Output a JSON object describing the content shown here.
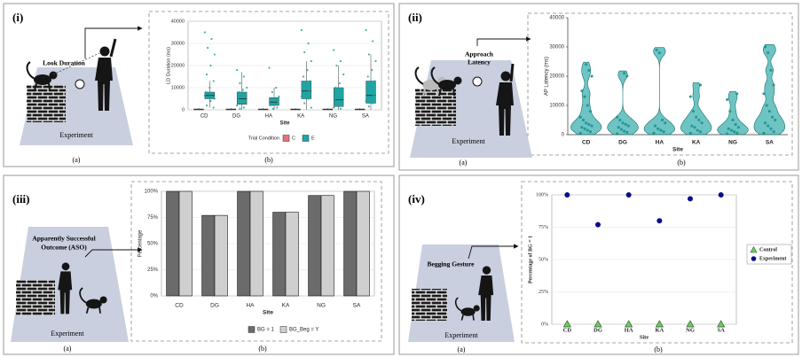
{
  "chart_data": [
    {
      "type": "box",
      "y_label": "LD Duration (ms)",
      "x_label": "Site",
      "legend_title": "Trial Condition",
      "legend_position": "bottom",
      "grid": true,
      "categories": [
        "CD",
        "DG",
        "HA",
        "KA",
        "NG",
        "SA"
      ],
      "ylim": [
        0,
        40000
      ],
      "yticks": [
        0,
        10000,
        20000,
        30000,
        40000
      ],
      "series": [
        {
          "name": "C",
          "color": "#e8707a",
          "stats": [
            {
              "min": 0,
              "q1": 0,
              "median": 200,
              "q3": 400,
              "max": 800
            },
            {
              "min": 0,
              "q1": 0,
              "median": 200,
              "q3": 400,
              "max": 800
            },
            {
              "min": 0,
              "q1": 0,
              "median": 200,
              "q3": 400,
              "max": 800
            },
            {
              "min": 0,
              "q1": 0,
              "median": 200,
              "q3": 400,
              "max": 800
            },
            {
              "min": 0,
              "q1": 0,
              "median": 200,
              "q3": 400,
              "max": 800
            },
            {
              "min": 0,
              "q1": 0,
              "median": 200,
              "q3": 400,
              "max": 800
            }
          ]
        },
        {
          "name": "E",
          "color": "#1fa5a3",
          "stats": [
            {
              "min": 1000,
              "q1": 5000,
              "median": 6500,
              "q3": 8000,
              "max": 13000
            },
            {
              "min": 0,
              "q1": 2500,
              "median": 5000,
              "q3": 8000,
              "max": 17000
            },
            {
              "min": 0,
              "q1": 2000,
              "median": 3500,
              "q3": 5500,
              "max": 10000
            },
            {
              "min": 0,
              "q1": 5000,
              "median": 8500,
              "q3": 13000,
              "max": 22000
            },
            {
              "min": 0,
              "q1": 1500,
              "median": 4500,
              "q3": 10000,
              "max": 20000
            },
            {
              "min": 0,
              "q1": 3000,
              "median": 6500,
              "q3": 13000,
              "max": 25000
            }
          ],
          "points": [
            [
              35000,
              32000,
              28000,
              25000,
              20000,
              16000,
              13000,
              10000,
              8000,
              7500,
              7000,
              6500,
              6000,
              5500,
              5000,
              4000,
              2000,
              1000
            ],
            [
              18000,
              15000,
              12000,
              10000,
              9000,
              8000,
              7000,
              6000,
              5000,
              4000,
              3000,
              2000,
              1000,
              500
            ],
            [
              19000,
              10000,
              8000,
              6000,
              5000,
              4000,
              3500,
              3000,
              2000,
              1000,
              500
            ],
            [
              36000,
              30000,
              26000,
              22000,
              18000,
              15000,
              13000,
              11000,
              9000,
              8500,
              8000,
              6000,
              5000,
              3000,
              1000
            ],
            [
              27000,
              22000,
              20000,
              16000,
              12000,
              10000,
              8000,
              6000,
              4500,
              3000,
              2000,
              1000,
              500
            ],
            [
              36000,
              31000,
              25000,
              22000,
              18000,
              15000,
              13000,
              10000,
              8000,
              6500,
              5000,
              4000,
              3000,
              1500
            ]
          ]
        }
      ]
    },
    {
      "type": "violin",
      "y_label": "AP Latency (ms)",
      "x_label": "Site",
      "grid": false,
      "categories": [
        "CD",
        "DG",
        "HA",
        "KA",
        "NG",
        "SA"
      ],
      "ylim": [
        0,
        40000
      ],
      "yticks": [
        0,
        10000,
        20000,
        30000,
        40000
      ],
      "series": [
        {
          "color": "#1fa5a3",
          "points": [
            [
              500,
              1000,
              1500,
              2000,
              2500,
              3000,
              3500,
              4000,
              5000,
              6000,
              8000,
              10000,
              13000,
              15000,
              20000,
              22000,
              24000
            ],
            [
              300,
              800,
              1200,
              1800,
              2500,
              3000,
              3500,
              4000,
              5000,
              6000,
              20000,
              21000
            ],
            [
              500,
              1000,
              1500,
              2000,
              3000,
              4000,
              5000,
              28000,
              29000
            ],
            [
              500,
              1000,
              1500,
              2500,
              3000,
              4000,
              5000,
              6000,
              8000,
              13000,
              17000
            ],
            [
              300,
              600,
              1000,
              1500,
              2000,
              2500,
              3500,
              5000,
              8000,
              12000,
              14000
            ],
            [
              500,
              1000,
              2000,
              3000,
              4000,
              5000,
              6000,
              8000,
              10000,
              14000,
              17000,
              22000,
              28000,
              30000
            ]
          ]
        }
      ]
    },
    {
      "type": "bar",
      "y_label": "Percentage",
      "x_label": "Site",
      "legend_position": "bottom",
      "grid": true,
      "categories": [
        "CD",
        "DG",
        "HA",
        "KA",
        "NG",
        "SA"
      ],
      "ylim": [
        0,
        100
      ],
      "yticks": [
        {
          "value": 0,
          "label": "0%"
        },
        {
          "value": 25,
          "label": "25%"
        },
        {
          "value": 50,
          "label": "50%"
        },
        {
          "value": 75,
          "label": "75%"
        },
        {
          "value": 100,
          "label": "100%"
        }
      ],
      "series": [
        {
          "name": "BG = 1",
          "color": "#6b6b6b",
          "values": [
            100,
            77,
            100,
            80,
            96,
            100
          ]
        },
        {
          "name": "BG_Beg = Y",
          "color": "#cfcfcf",
          "values": [
            100,
            77,
            100,
            80,
            96,
            100
          ]
        }
      ]
    },
    {
      "type": "scatter",
      "y_label": "Percentage of BG = 1",
      "x_label": "Site",
      "legend_position": "right",
      "grid": true,
      "categories": [
        "CD",
        "DG",
        "HA",
        "KA",
        "NG",
        "SA"
      ],
      "ylim": [
        0,
        100
      ],
      "yticks": [
        {
          "value": 0,
          "label": "0%"
        },
        {
          "value": 25,
          "label": "25%"
        },
        {
          "value": 50,
          "label": "50%"
        },
        {
          "value": 75,
          "label": "75%"
        },
        {
          "value": 100,
          "label": "100%"
        }
      ],
      "series": [
        {
          "name": "Control",
          "color": "#6ecb63",
          "marker": "triangle",
          "values": [
            0,
            0,
            0,
            0,
            0,
            0
          ]
        },
        {
          "name": "Experiment",
          "color": "#0c0c8c",
          "marker": "circle",
          "values": [
            100,
            77,
            100,
            80,
            97,
            100
          ]
        }
      ]
    }
  ],
  "panels": [
    {
      "label": "(i)",
      "cue": [
        "Look Duration"
      ],
      "scene": "Experiment",
      "caption_a": "(a)",
      "caption_b": "(b)"
    },
    {
      "label": "(ii)",
      "cue": [
        "Approach",
        "Latency"
      ],
      "scene": "Experiment",
      "caption_a": "(a)",
      "caption_b": "(b)"
    },
    {
      "label": "(iii)",
      "cue": [
        "Apparently Successful",
        "Outcome (ASO)"
      ],
      "scene": "Experiment",
      "caption_a": "(a)",
      "caption_b": "(b)"
    },
    {
      "label": "(iv)",
      "cue": [
        "Begging Gesture"
      ],
      "scene": "Experiment",
      "caption_a": "(a)",
      "caption_b": "(b)"
    }
  ]
}
